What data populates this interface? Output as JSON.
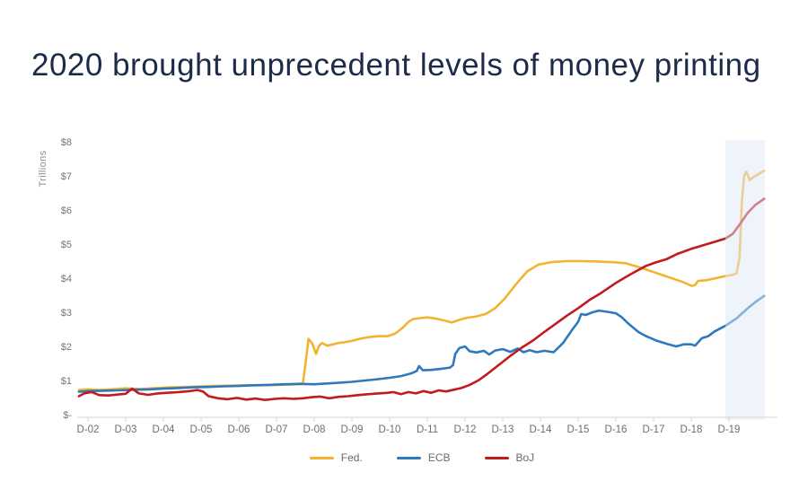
{
  "page": {
    "title": "2020 brought unprecedent levels of money printing"
  },
  "chart_data": {
    "type": "line",
    "title": "2020 brought unprecedent levels of money printing",
    "xlabel": "",
    "ylabel": "Trillions",
    "ylim": [
      0,
      8
    ],
    "grid": false,
    "legend_position": "bottom-center",
    "y_ticks": [
      {
        "label": "$8",
        "value": 8
      },
      {
        "label": "$7",
        "value": 7
      },
      {
        "label": "$6",
        "value": 6
      },
      {
        "label": "$5",
        "value": 5
      },
      {
        "label": "$4",
        "value": 4
      },
      {
        "label": "$3",
        "value": 3
      },
      {
        "label": "$2",
        "value": 2
      },
      {
        "label": "$1",
        "value": 1
      },
      {
        "label": "$-",
        "value": 0
      }
    ],
    "x_labels": [
      "D-02",
      "D-03",
      "D-04",
      "D-05",
      "D-06",
      "D-07",
      "D-08",
      "D-09",
      "D-10",
      "D-11",
      "D-12",
      "D-13",
      "D-14",
      "D-15",
      "D-16",
      "D-17",
      "D-18",
      "D-19"
    ],
    "x_unit": "years after D-02 tick (fractional = months)",
    "highlight_band": {
      "note": "2020 shaded region after D-19",
      "from_t": 16.9,
      "to_t": 17.95,
      "color": "#dfeaf7",
      "opacity": 0.5
    },
    "series": [
      {
        "name": "Fed.",
        "color": "#F2B42F",
        "points": [
          [
            -0.24,
            0.72
          ],
          [
            0,
            0.74
          ],
          [
            0.3,
            0.72
          ],
          [
            0.6,
            0.74
          ],
          [
            1,
            0.77
          ],
          [
            1.4,
            0.75
          ],
          [
            1.8,
            0.78
          ],
          [
            2.2,
            0.8
          ],
          [
            2.6,
            0.81
          ],
          [
            3,
            0.83
          ],
          [
            3.4,
            0.84
          ],
          [
            3.8,
            0.85
          ],
          [
            4.2,
            0.86
          ],
          [
            4.6,
            0.86
          ],
          [
            5,
            0.87
          ],
          [
            5.4,
            0.88
          ],
          [
            5.6,
            0.9
          ],
          [
            5.7,
            0.92
          ],
          [
            5.78,
            1.6
          ],
          [
            5.85,
            2.22
          ],
          [
            5.95,
            2.08
          ],
          [
            6.05,
            1.78
          ],
          [
            6.12,
            2.0
          ],
          [
            6.2,
            2.1
          ],
          [
            6.35,
            2.02
          ],
          [
            6.5,
            2.06
          ],
          [
            6.65,
            2.1
          ],
          [
            6.8,
            2.12
          ],
          [
            7,
            2.16
          ],
          [
            7.2,
            2.22
          ],
          [
            7.45,
            2.27
          ],
          [
            7.7,
            2.3
          ],
          [
            7.95,
            2.3
          ],
          [
            8.15,
            2.38
          ],
          [
            8.35,
            2.55
          ],
          [
            8.5,
            2.72
          ],
          [
            8.62,
            2.8
          ],
          [
            8.8,
            2.83
          ],
          [
            9,
            2.85
          ],
          [
            9.2,
            2.82
          ],
          [
            9.45,
            2.76
          ],
          [
            9.65,
            2.7
          ],
          [
            9.85,
            2.78
          ],
          [
            10.05,
            2.84
          ],
          [
            10.3,
            2.88
          ],
          [
            10.55,
            2.95
          ],
          [
            10.8,
            3.12
          ],
          [
            11.05,
            3.4
          ],
          [
            11.35,
            3.82
          ],
          [
            11.65,
            4.2
          ],
          [
            11.95,
            4.4
          ],
          [
            12.3,
            4.47
          ],
          [
            12.7,
            4.5
          ],
          [
            13.1,
            4.5
          ],
          [
            13.5,
            4.49
          ],
          [
            13.9,
            4.47
          ],
          [
            14.25,
            4.44
          ],
          [
            14.6,
            4.33
          ],
          [
            15,
            4.18
          ],
          [
            15.4,
            4.03
          ],
          [
            15.75,
            3.9
          ],
          [
            16.02,
            3.77
          ],
          [
            16.1,
            3.8
          ],
          [
            16.18,
            3.92
          ],
          [
            16.4,
            3.94
          ],
          [
            16.65,
            4.0
          ],
          [
            16.9,
            4.06
          ],
          [
            17.1,
            4.1
          ],
          [
            17.2,
            4.14
          ],
          [
            17.28,
            4.6
          ],
          [
            17.34,
            6.2
          ],
          [
            17.4,
            7.0
          ],
          [
            17.46,
            7.12
          ],
          [
            17.55,
            6.88
          ],
          [
            17.65,
            6.97
          ],
          [
            17.78,
            7.05
          ],
          [
            17.93,
            7.15
          ]
        ]
      },
      {
        "name": "ECB",
        "color": "#2E79BC",
        "points": [
          [
            -0.24,
            0.67
          ],
          [
            0,
            0.69
          ],
          [
            0.4,
            0.7
          ],
          [
            0.8,
            0.71
          ],
          [
            1.2,
            0.73
          ],
          [
            1.6,
            0.74
          ],
          [
            2,
            0.76
          ],
          [
            2.4,
            0.78
          ],
          [
            2.8,
            0.8
          ],
          [
            3.2,
            0.81
          ],
          [
            3.6,
            0.83
          ],
          [
            4,
            0.84
          ],
          [
            4.4,
            0.86
          ],
          [
            4.8,
            0.87
          ],
          [
            5.2,
            0.89
          ],
          [
            5.6,
            0.9
          ],
          [
            6,
            0.89
          ],
          [
            6.3,
            0.91
          ],
          [
            6.6,
            0.93
          ],
          [
            7,
            0.96
          ],
          [
            7.35,
            1.0
          ],
          [
            7.7,
            1.04
          ],
          [
            8,
            1.08
          ],
          [
            8.3,
            1.13
          ],
          [
            8.55,
            1.2
          ],
          [
            8.72,
            1.28
          ],
          [
            8.78,
            1.42
          ],
          [
            8.88,
            1.3
          ],
          [
            9.1,
            1.31
          ],
          [
            9.35,
            1.34
          ],
          [
            9.6,
            1.38
          ],
          [
            9.68,
            1.45
          ],
          [
            9.74,
            1.78
          ],
          [
            9.85,
            1.95
          ],
          [
            10,
            2.0
          ],
          [
            10.12,
            1.86
          ],
          [
            10.3,
            1.82
          ],
          [
            10.5,
            1.87
          ],
          [
            10.64,
            1.76
          ],
          [
            10.8,
            1.88
          ],
          [
            11,
            1.92
          ],
          [
            11.2,
            1.84
          ],
          [
            11.4,
            1.94
          ],
          [
            11.55,
            1.83
          ],
          [
            11.72,
            1.89
          ],
          [
            11.9,
            1.83
          ],
          [
            12.1,
            1.87
          ],
          [
            12.35,
            1.83
          ],
          [
            12.6,
            2.1
          ],
          [
            12.85,
            2.5
          ],
          [
            13,
            2.72
          ],
          [
            13.08,
            2.95
          ],
          [
            13.2,
            2.92
          ],
          [
            13.38,
            3.0
          ],
          [
            13.55,
            3.05
          ],
          [
            13.8,
            3.01
          ],
          [
            14,
            2.97
          ],
          [
            14.15,
            2.86
          ],
          [
            14.35,
            2.65
          ],
          [
            14.6,
            2.42
          ],
          [
            14.8,
            2.3
          ],
          [
            15.1,
            2.16
          ],
          [
            15.4,
            2.06
          ],
          [
            15.6,
            2.0
          ],
          [
            15.8,
            2.06
          ],
          [
            16,
            2.06
          ],
          [
            16.1,
            2.02
          ],
          [
            16.28,
            2.24
          ],
          [
            16.45,
            2.3
          ],
          [
            16.62,
            2.44
          ],
          [
            16.9,
            2.6
          ],
          [
            17.2,
            2.82
          ],
          [
            17.5,
            3.12
          ],
          [
            17.7,
            3.3
          ],
          [
            17.93,
            3.48
          ]
        ]
      },
      {
        "name": "BoJ",
        "color": "#C11B1E",
        "points": [
          [
            -0.24,
            0.54
          ],
          [
            -0.1,
            0.62
          ],
          [
            0.1,
            0.66
          ],
          [
            0.3,
            0.57
          ],
          [
            0.55,
            0.56
          ],
          [
            0.8,
            0.59
          ],
          [
            1,
            0.61
          ],
          [
            1.17,
            0.76
          ],
          [
            1.35,
            0.62
          ],
          [
            1.6,
            0.58
          ],
          [
            1.85,
            0.62
          ],
          [
            2.1,
            0.64
          ],
          [
            2.4,
            0.66
          ],
          [
            2.7,
            0.69
          ],
          [
            2.9,
            0.72
          ],
          [
            3.05,
            0.68
          ],
          [
            3.2,
            0.54
          ],
          [
            3.45,
            0.48
          ],
          [
            3.7,
            0.45
          ],
          [
            3.95,
            0.49
          ],
          [
            4.2,
            0.44
          ],
          [
            4.45,
            0.47
          ],
          [
            4.7,
            0.43
          ],
          [
            4.95,
            0.46
          ],
          [
            5.2,
            0.48
          ],
          [
            5.45,
            0.46
          ],
          [
            5.7,
            0.48
          ],
          [
            5.95,
            0.51
          ],
          [
            6.15,
            0.53
          ],
          [
            6.4,
            0.48
          ],
          [
            6.65,
            0.52
          ],
          [
            6.9,
            0.54
          ],
          [
            7.15,
            0.57
          ],
          [
            7.45,
            0.6
          ],
          [
            7.7,
            0.62
          ],
          [
            7.95,
            0.64
          ],
          [
            8.1,
            0.66
          ],
          [
            8.3,
            0.6
          ],
          [
            8.5,
            0.66
          ],
          [
            8.7,
            0.62
          ],
          [
            8.9,
            0.69
          ],
          [
            9.1,
            0.64
          ],
          [
            9.3,
            0.71
          ],
          [
            9.5,
            0.68
          ],
          [
            9.7,
            0.73
          ],
          [
            9.9,
            0.78
          ],
          [
            10.1,
            0.86
          ],
          [
            10.35,
            1.0
          ],
          [
            10.6,
            1.2
          ],
          [
            10.9,
            1.46
          ],
          [
            11.2,
            1.72
          ],
          [
            11.5,
            1.96
          ],
          [
            11.8,
            2.17
          ],
          [
            12.1,
            2.42
          ],
          [
            12.4,
            2.66
          ],
          [
            12.7,
            2.9
          ],
          [
            13,
            3.12
          ],
          [
            13.3,
            3.36
          ],
          [
            13.6,
            3.56
          ],
          [
            14,
            3.86
          ],
          [
            14.4,
            4.12
          ],
          [
            14.8,
            4.36
          ],
          [
            15.05,
            4.46
          ],
          [
            15.35,
            4.56
          ],
          [
            15.65,
            4.72
          ],
          [
            16,
            4.86
          ],
          [
            16.3,
            4.96
          ],
          [
            16.6,
            5.06
          ],
          [
            16.9,
            5.16
          ],
          [
            17.1,
            5.3
          ],
          [
            17.3,
            5.6
          ],
          [
            17.5,
            5.92
          ],
          [
            17.7,
            6.15
          ],
          [
            17.93,
            6.33
          ]
        ]
      }
    ]
  }
}
